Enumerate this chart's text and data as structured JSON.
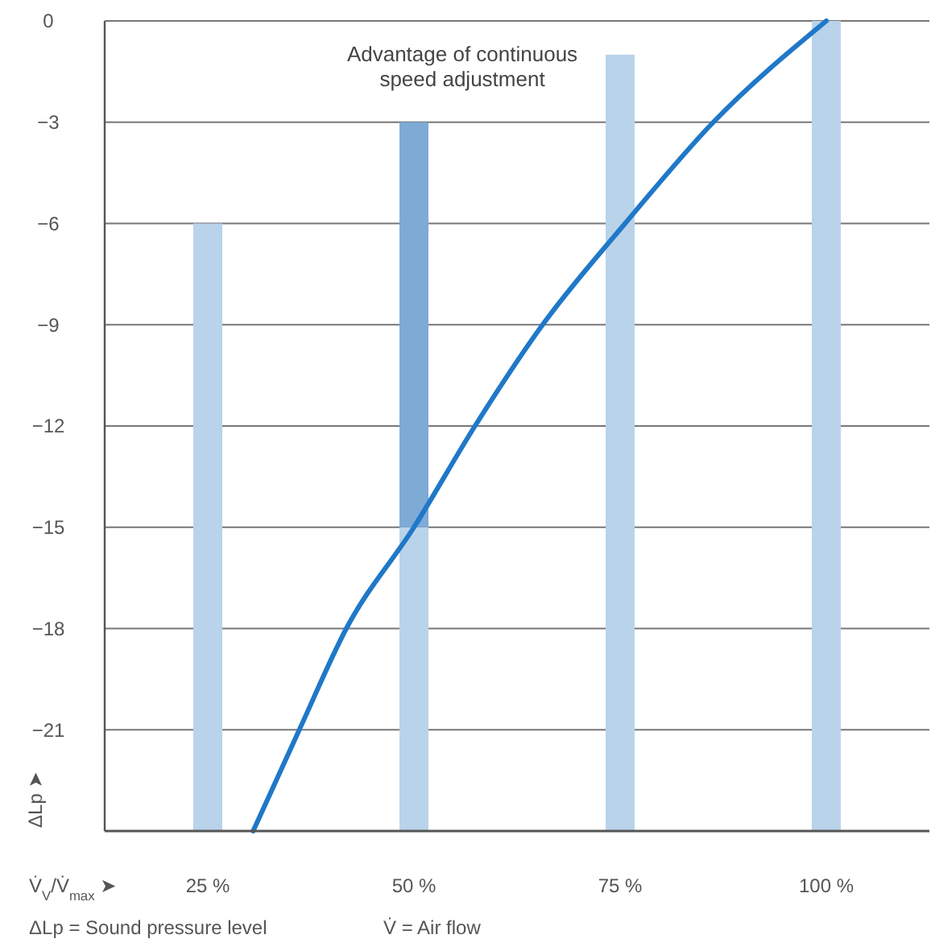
{
  "chart_data": {
    "type": "bar",
    "xlabel": "V̇$_{V}$/V̇$_{max}$ ➤",
    "ylabel": "ΔLp ➤",
    "annotations": [
      "Advantage of continuous speed adjustment",
      "ΔLp = Sound pressure level",
      "V̇ = Air flow"
    ],
    "x": [
      25,
      50,
      75,
      100
    ],
    "xlim": [
      12.5,
      112.5
    ],
    "xticks": [
      {
        "value": 25,
        "label": "25 %"
      },
      {
        "value": 50,
        "label": "50 %"
      },
      {
        "value": 75,
        "label": "75 %"
      },
      {
        "value": 100,
        "label": "100 %"
      }
    ],
    "ylim": [
      -24,
      0
    ],
    "yticks": [
      0,
      -3,
      -6,
      -9,
      -12,
      -15,
      -18,
      -21
    ],
    "grid": "y",
    "series": [
      {
        "color": "#b9d3ea",
        "base": [
          -24,
          -24,
          -24,
          -24
        ],
        "values": [
          18,
          9,
          23,
          24
        ]
      },
      {
        "color": "#7eaad6",
        "base": [
          null,
          -15,
          null,
          null
        ],
        "values": [
          null,
          12,
          null,
          null
        ]
      },
      {
        "type": "line",
        "color": "#1f78c8",
        "x": [
          30.5,
          36.1,
          41.8,
          50,
          57.4,
          65.6,
          75.6,
          86.3,
          100
        ],
        "values": [
          -24,
          -21,
          -18,
          -15,
          -12,
          -9,
          -6,
          -3,
          0
        ]
      }
    ]
  }
}
